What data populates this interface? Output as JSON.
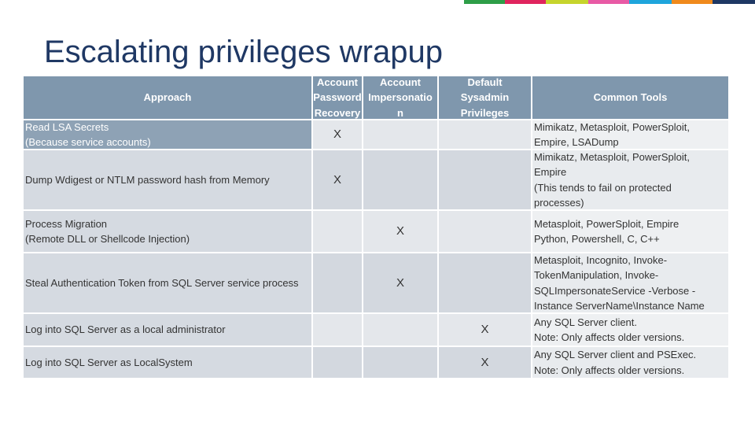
{
  "title": "Escalating privileges wrapup",
  "table": {
    "header": [
      [
        "Approach"
      ],
      [
        "Account",
        "Password",
        "Recovery"
      ],
      [
        "Account",
        "Impersonatio",
        "n"
      ],
      [
        "Default",
        "Sysadmin",
        "Privileges"
      ],
      [
        "Common Tools"
      ]
    ],
    "rows": [
      [
        [
          "Read LSA Secrets",
          "(Because service accounts)"
        ],
        [
          "X"
        ],
        [],
        [],
        [
          "Mimikatz, Metasploit, PowerSploit,",
          "Empire, LSADump"
        ]
      ],
      [
        [
          "Dump Wdigest or NTLM password hash from Memory"
        ],
        [
          "X"
        ],
        [],
        [],
        [
          "Mimikatz, Metasploit, PowerSploit,",
          "Empire",
          "(This tends to fail on protected",
          "processes)"
        ]
      ],
      [
        [
          "Process Migration",
          "(Remote DLL or Shellcode Injection)"
        ],
        [],
        [
          "X"
        ],
        [],
        [
          "Metasploit, PowerSploit, Empire",
          "Python, Powershell, C, C++"
        ]
      ],
      [
        [
          "Steal Authentication Token from SQL Server service process"
        ],
        [],
        [
          "X"
        ],
        [],
        [
          "Metasploit, Incognito, Invoke-",
          "TokenManipulation, Invoke-",
          "SQLImpersonateService -Verbose -",
          "Instance ServerName\\Instance Name"
        ]
      ],
      [
        [
          "Log into SQL Server as a local administrator"
        ],
        [],
        [],
        [
          "X"
        ],
        [
          "Any SQL Server client.",
          "Note: Only affects older versions."
        ]
      ],
      [
        [
          "Log into SQL Server as LocalSystem"
        ],
        [],
        [],
        [
          "X"
        ],
        [
          "Any SQL Server client and PSExec.",
          "Note: Only affects older versions."
        ]
      ]
    ]
  }
}
